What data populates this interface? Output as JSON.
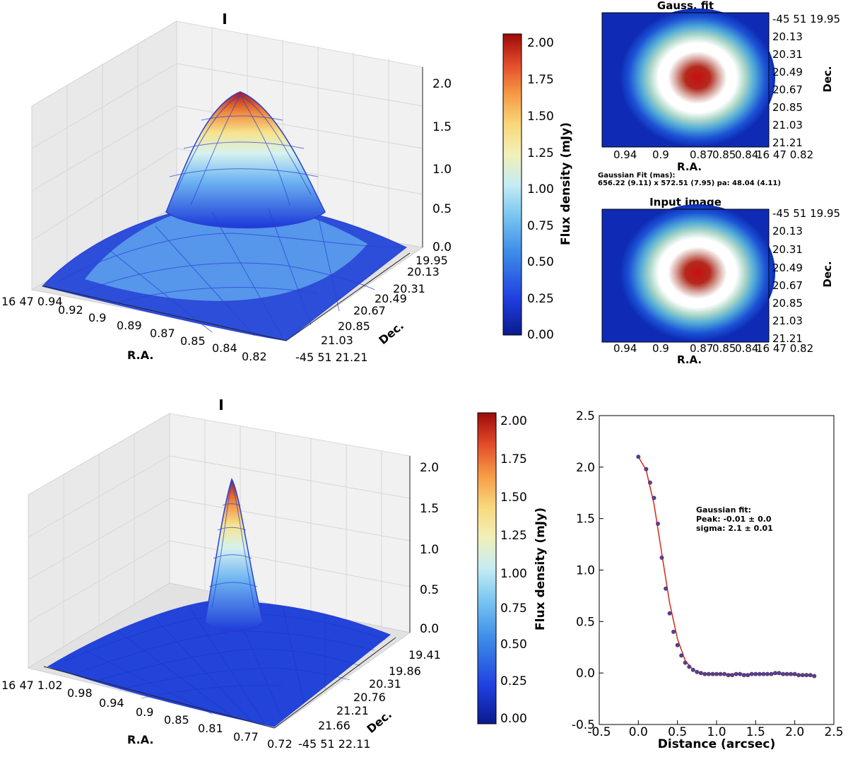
{
  "colors": {
    "low": "#0d2a9e",
    "mid": "#bfe6f7",
    "high": "#b40c0c",
    "mesh": "#2a3fd8",
    "fit_line": "#d9261c"
  },
  "top_surface": {
    "title": "I",
    "xlabel": "R.A.",
    "ylabel": "Dec.",
    "ra_ticks": [
      "16 47 0.94",
      "0.92",
      "0.9",
      "0.89",
      "0.87",
      "0.85",
      "0.84",
      "0.82"
    ],
    "dec_ticks": [
      "19.95",
      "20.13",
      "20.31",
      "20.49",
      "20.67",
      "20.85",
      "21.03",
      "-45 51 21.21"
    ],
    "z_ticks": [
      "2.0",
      "1.5",
      "1.0",
      "0.5",
      "0.0"
    ]
  },
  "top_colorbar": {
    "label": "Flux density (mJy)",
    "ticks": [
      "2.00",
      "1.75",
      "1.50",
      "1.25",
      "1.00",
      "0.75",
      "0.50",
      "0.25",
      "0.00"
    ]
  },
  "gauss_fit_image": {
    "title": "Gauss. fit",
    "xlabel": "R.A.",
    "ylabel": "Dec.",
    "ra_ticks": [
      "0.94",
      "0.9",
      "0.87",
      "0.85",
      "0.84",
      "16 47 0.82"
    ],
    "dec_ticks": [
      "-45 51 19.95",
      "20.13",
      "20.31",
      "20.49",
      "20.67",
      "20.85",
      "21.03",
      "21.21"
    ],
    "fit_text_line1": "Gaussian Fit (mas):",
    "fit_text_line2": "656.22 (9.11) x 572.51 (7.95) pa: 48.04 (4.11)"
  },
  "input_image": {
    "title": "Input image",
    "xlabel": "R.A.",
    "ylabel": "Dec.",
    "ra_ticks": [
      "0.94",
      "0.9",
      "0.87",
      "0.85",
      "0.84",
      "16 47 0.82"
    ],
    "dec_ticks": [
      "-45 51 19.95",
      "20.13",
      "20.31",
      "20.49",
      "20.67",
      "20.85",
      "21.03",
      "21.21"
    ]
  },
  "bottom_surface": {
    "title": "I",
    "xlabel": "R.A.",
    "ylabel": "Dec.",
    "ra_ticks": [
      "16 47 1.02",
      "0.98",
      "0.94",
      "0.9",
      "0.85",
      "0.81",
      "0.77",
      "0.72"
    ],
    "dec_ticks": [
      "19.41",
      "19.86",
      "20.31",
      "20.76",
      "21.21",
      "21.66",
      "-45 51 22.11"
    ],
    "z_ticks": [
      "2.0",
      "1.5",
      "1.0",
      "0.5",
      "0.0"
    ]
  },
  "bottom_colorbar": {
    "label": "Flux density (mJy)",
    "ticks": [
      "2.00",
      "1.75",
      "1.50",
      "1.25",
      "1.00",
      "0.75",
      "0.50",
      "0.25",
      "0.00"
    ]
  },
  "chart_data": [
    {
      "type": "scatter",
      "title": "",
      "xlabel": "Distance (arcsec)",
      "ylabel": "",
      "xlim": [
        -0.5,
        2.5
      ],
      "ylim": [
        -0.5,
        2.5
      ],
      "x_ticks": [
        -0.5,
        0.0,
        0.5,
        1.0,
        1.5,
        2.0,
        2.5
      ],
      "y_ticks": [
        -0.5,
        0.0,
        0.5,
        1.0,
        1.5,
        2.0,
        2.5
      ],
      "x_tick_labels": [
        "-0.5",
        "0.0",
        "0.5",
        "1.0",
        "1.5",
        "2.0",
        "2.5"
      ],
      "y_tick_labels": [
        "-0.5",
        "0.0",
        "0.5",
        "1.0",
        "1.5",
        "2.0",
        "2.5"
      ],
      "annotation": {
        "line1": "Gaussian fit:",
        "line2": "Peak: -0.01 ± 0.0",
        "line3": "sigma: 2.1 ± 0.01"
      },
      "series": [
        {
          "name": "data",
          "x": [
            0.0,
            0.1,
            0.15,
            0.2,
            0.25,
            0.3,
            0.35,
            0.4,
            0.45,
            0.5,
            0.55,
            0.6,
            0.65,
            0.7,
            0.75,
            0.8,
            0.85,
            0.9,
            0.95,
            1.0,
            1.05,
            1.1,
            1.15,
            1.2,
            1.25,
            1.3,
            1.35,
            1.4,
            1.45,
            1.5,
            1.55,
            1.6,
            1.65,
            1.7,
            1.75,
            1.8,
            1.85,
            1.9,
            1.95,
            2.0,
            2.05,
            2.1,
            2.15,
            2.2,
            2.25
          ],
          "y": [
            2.1,
            1.98,
            1.85,
            1.7,
            1.45,
            1.12,
            0.82,
            0.58,
            0.4,
            0.27,
            0.17,
            0.1,
            0.06,
            0.03,
            0.01,
            0.0,
            -0.01,
            -0.01,
            -0.01,
            -0.01,
            -0.01,
            -0.01,
            -0.02,
            -0.02,
            -0.01,
            -0.01,
            -0.02,
            -0.02,
            -0.01,
            -0.01,
            -0.01,
            -0.01,
            -0.01,
            -0.01,
            0.0,
            0.0,
            -0.01,
            -0.01,
            -0.01,
            -0.01,
            -0.02,
            -0.02,
            -0.02,
            -0.02,
            -0.03
          ]
        },
        {
          "name": "fit",
          "x": [
            0.0,
            0.1,
            0.2,
            0.3,
            0.4,
            0.5,
            0.6,
            0.7,
            0.8,
            0.9,
            1.0,
            1.2,
            1.4,
            1.6,
            1.8,
            2.0,
            2.25
          ],
          "y": [
            2.1,
            1.97,
            1.64,
            1.16,
            0.68,
            0.33,
            0.12,
            0.03,
            0.0,
            -0.01,
            -0.01,
            -0.01,
            -0.01,
            -0.01,
            -0.01,
            -0.02,
            -0.03
          ]
        }
      ]
    }
  ]
}
